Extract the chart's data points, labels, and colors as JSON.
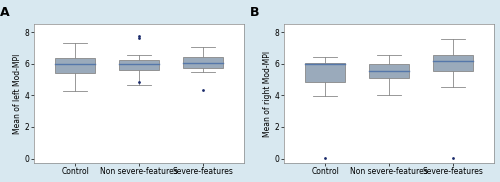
{
  "panel_A_label": "A",
  "panel_B_label": "B",
  "ylabel_A": "Mean of left Mod-MPI",
  "ylabel_B": "Mean of right Mod-MPI",
  "categories": [
    "Control",
    "Non severe-features",
    "Severe-features"
  ],
  "A_ylim": [
    -0.3,
    8.5
  ],
  "A_yticks": [
    0,
    2,
    4,
    6,
    8
  ],
  "B_ylim": [
    -0.3,
    8.5
  ],
  "B_yticks": [
    0,
    2,
    4,
    6,
    8
  ],
  "box_facecolor": "#9aaabb",
  "box_edgecolor": "#888888",
  "whisker_color": "#888888",
  "median_color": "#5577aa",
  "flier_color": "#1a2a6a",
  "background_color": "#d8e8f0",
  "panel_background": "#ffffff",
  "A_boxes": [
    {
      "med": 5.95,
      "q1": 5.4,
      "q3": 6.35,
      "whislo": 4.3,
      "whishi": 7.3,
      "fliers": []
    },
    {
      "med": 5.95,
      "q1": 5.6,
      "q3": 6.25,
      "whislo": 4.65,
      "whishi": 6.55,
      "fliers": [
        7.65,
        7.75,
        4.85
      ]
    },
    {
      "med": 6.05,
      "q1": 5.75,
      "q3": 6.45,
      "whislo": 5.45,
      "whishi": 7.05,
      "fliers": [
        4.35
      ]
    }
  ],
  "B_boxes": [
    {
      "med": 5.95,
      "q1": 4.85,
      "q3": 6.05,
      "whislo": 3.95,
      "whishi": 6.45,
      "fliers": [
        0.05
      ]
    },
    {
      "med": 5.55,
      "q1": 5.1,
      "q3": 5.95,
      "whislo": 4.05,
      "whishi": 6.55,
      "fliers": []
    },
    {
      "med": 6.15,
      "q1": 5.55,
      "q3": 6.55,
      "whislo": 4.55,
      "whishi": 7.55,
      "fliers": [
        0.05
      ]
    }
  ],
  "label_fontsize": 5.5,
  "tick_fontsize": 5.5,
  "panel_label_fontsize": 9
}
